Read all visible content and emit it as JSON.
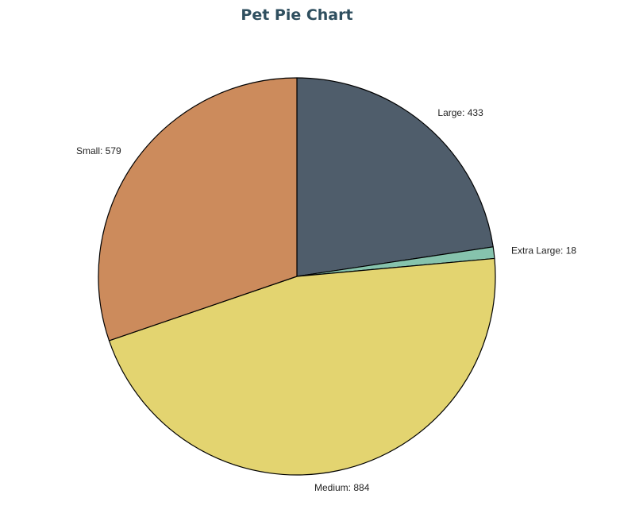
{
  "chart_data": {
    "type": "pie",
    "title": "Pet Pie Chart",
    "slices": [
      {
        "label": "Large",
        "value": 433,
        "color": "#4f5d6b",
        "display": "Large: 433"
      },
      {
        "label": "Extra Large",
        "value": 18,
        "color": "#86c3ad",
        "display": "Extra Large: 18"
      },
      {
        "label": "Medium",
        "value": 884,
        "color": "#e3d470",
        "display": "Medium: 884"
      },
      {
        "label": "Small",
        "value": 579,
        "color": "#cc8b5c",
        "display": "Small: 579"
      }
    ]
  }
}
